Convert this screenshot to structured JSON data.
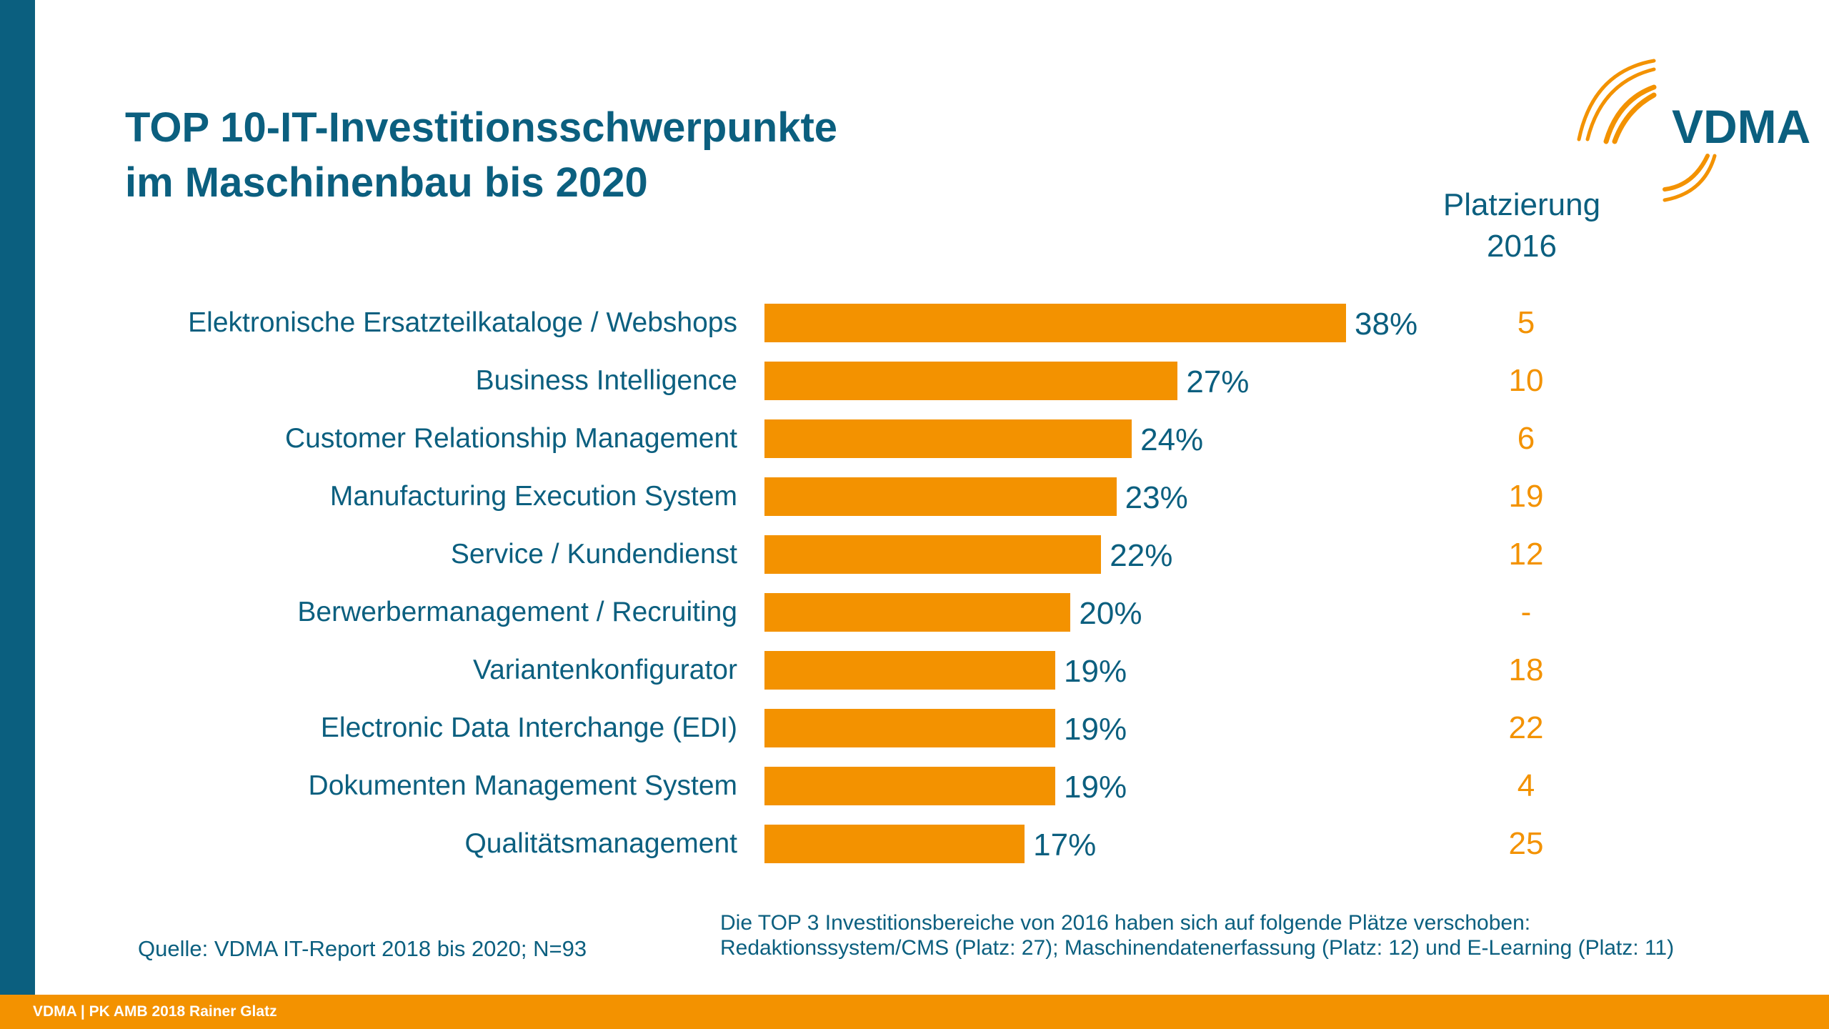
{
  "title": {
    "line1": "TOP 10-IT-Investitionsschwerpunkte",
    "line2": "im Maschinenbau bis 2020"
  },
  "logo": {
    "text": "VDMA",
    "colors": {
      "text": "#0b5f7f",
      "arcs": "#f39200"
    }
  },
  "rank_header": {
    "line1": "Platzierung",
    "line2": "2016"
  },
  "colors": {
    "bar": "#f39200",
    "text": "#0b5f7f",
    "rank": "#f39200",
    "sidebar": "#0b5f7f",
    "footer": "#f39200"
  },
  "chart_data": {
    "type": "bar",
    "orientation": "horizontal",
    "categories": [
      "Elektronische Ersatzteilkataloge / Webshops",
      "Business Intelligence",
      "Customer Relationship Management",
      "Manufacturing Execution System",
      "Service / Kundendienst",
      "Berwerbermanagement / Recruiting",
      "Variantenkonfigurator",
      "Electronic Data Interchange (EDI)",
      "Dokumenten Management System",
      "Qualitätsmanagement"
    ],
    "values": [
      38,
      27,
      24,
      23,
      22,
      20,
      19,
      19,
      19,
      17
    ],
    "value_labels": [
      "38%",
      "27%",
      "24%",
      "23%",
      "22%",
      "20%",
      "19%",
      "19%",
      "19%",
      "17%"
    ],
    "ranks_2016": [
      "5",
      "10",
      "6",
      "19",
      "12",
      "-",
      "18",
      "22",
      "4",
      "25"
    ],
    "xlim": [
      0,
      38
    ],
    "grid": false,
    "axes_visible": false
  },
  "source": "Quelle: VDMA IT-Report 2018 bis 2020; N=93",
  "note": {
    "line1": "Die TOP 3 Investitionsbereiche von 2016 haben sich auf folgende Plätze verschoben:",
    "line2": "Redaktionssystem/CMS (Platz: 27); Maschinendatenerfassung (Platz: 12) und E-Learning (Platz: 11)"
  },
  "footer": "VDMA | PK AMB 2018 Rainer Glatz"
}
